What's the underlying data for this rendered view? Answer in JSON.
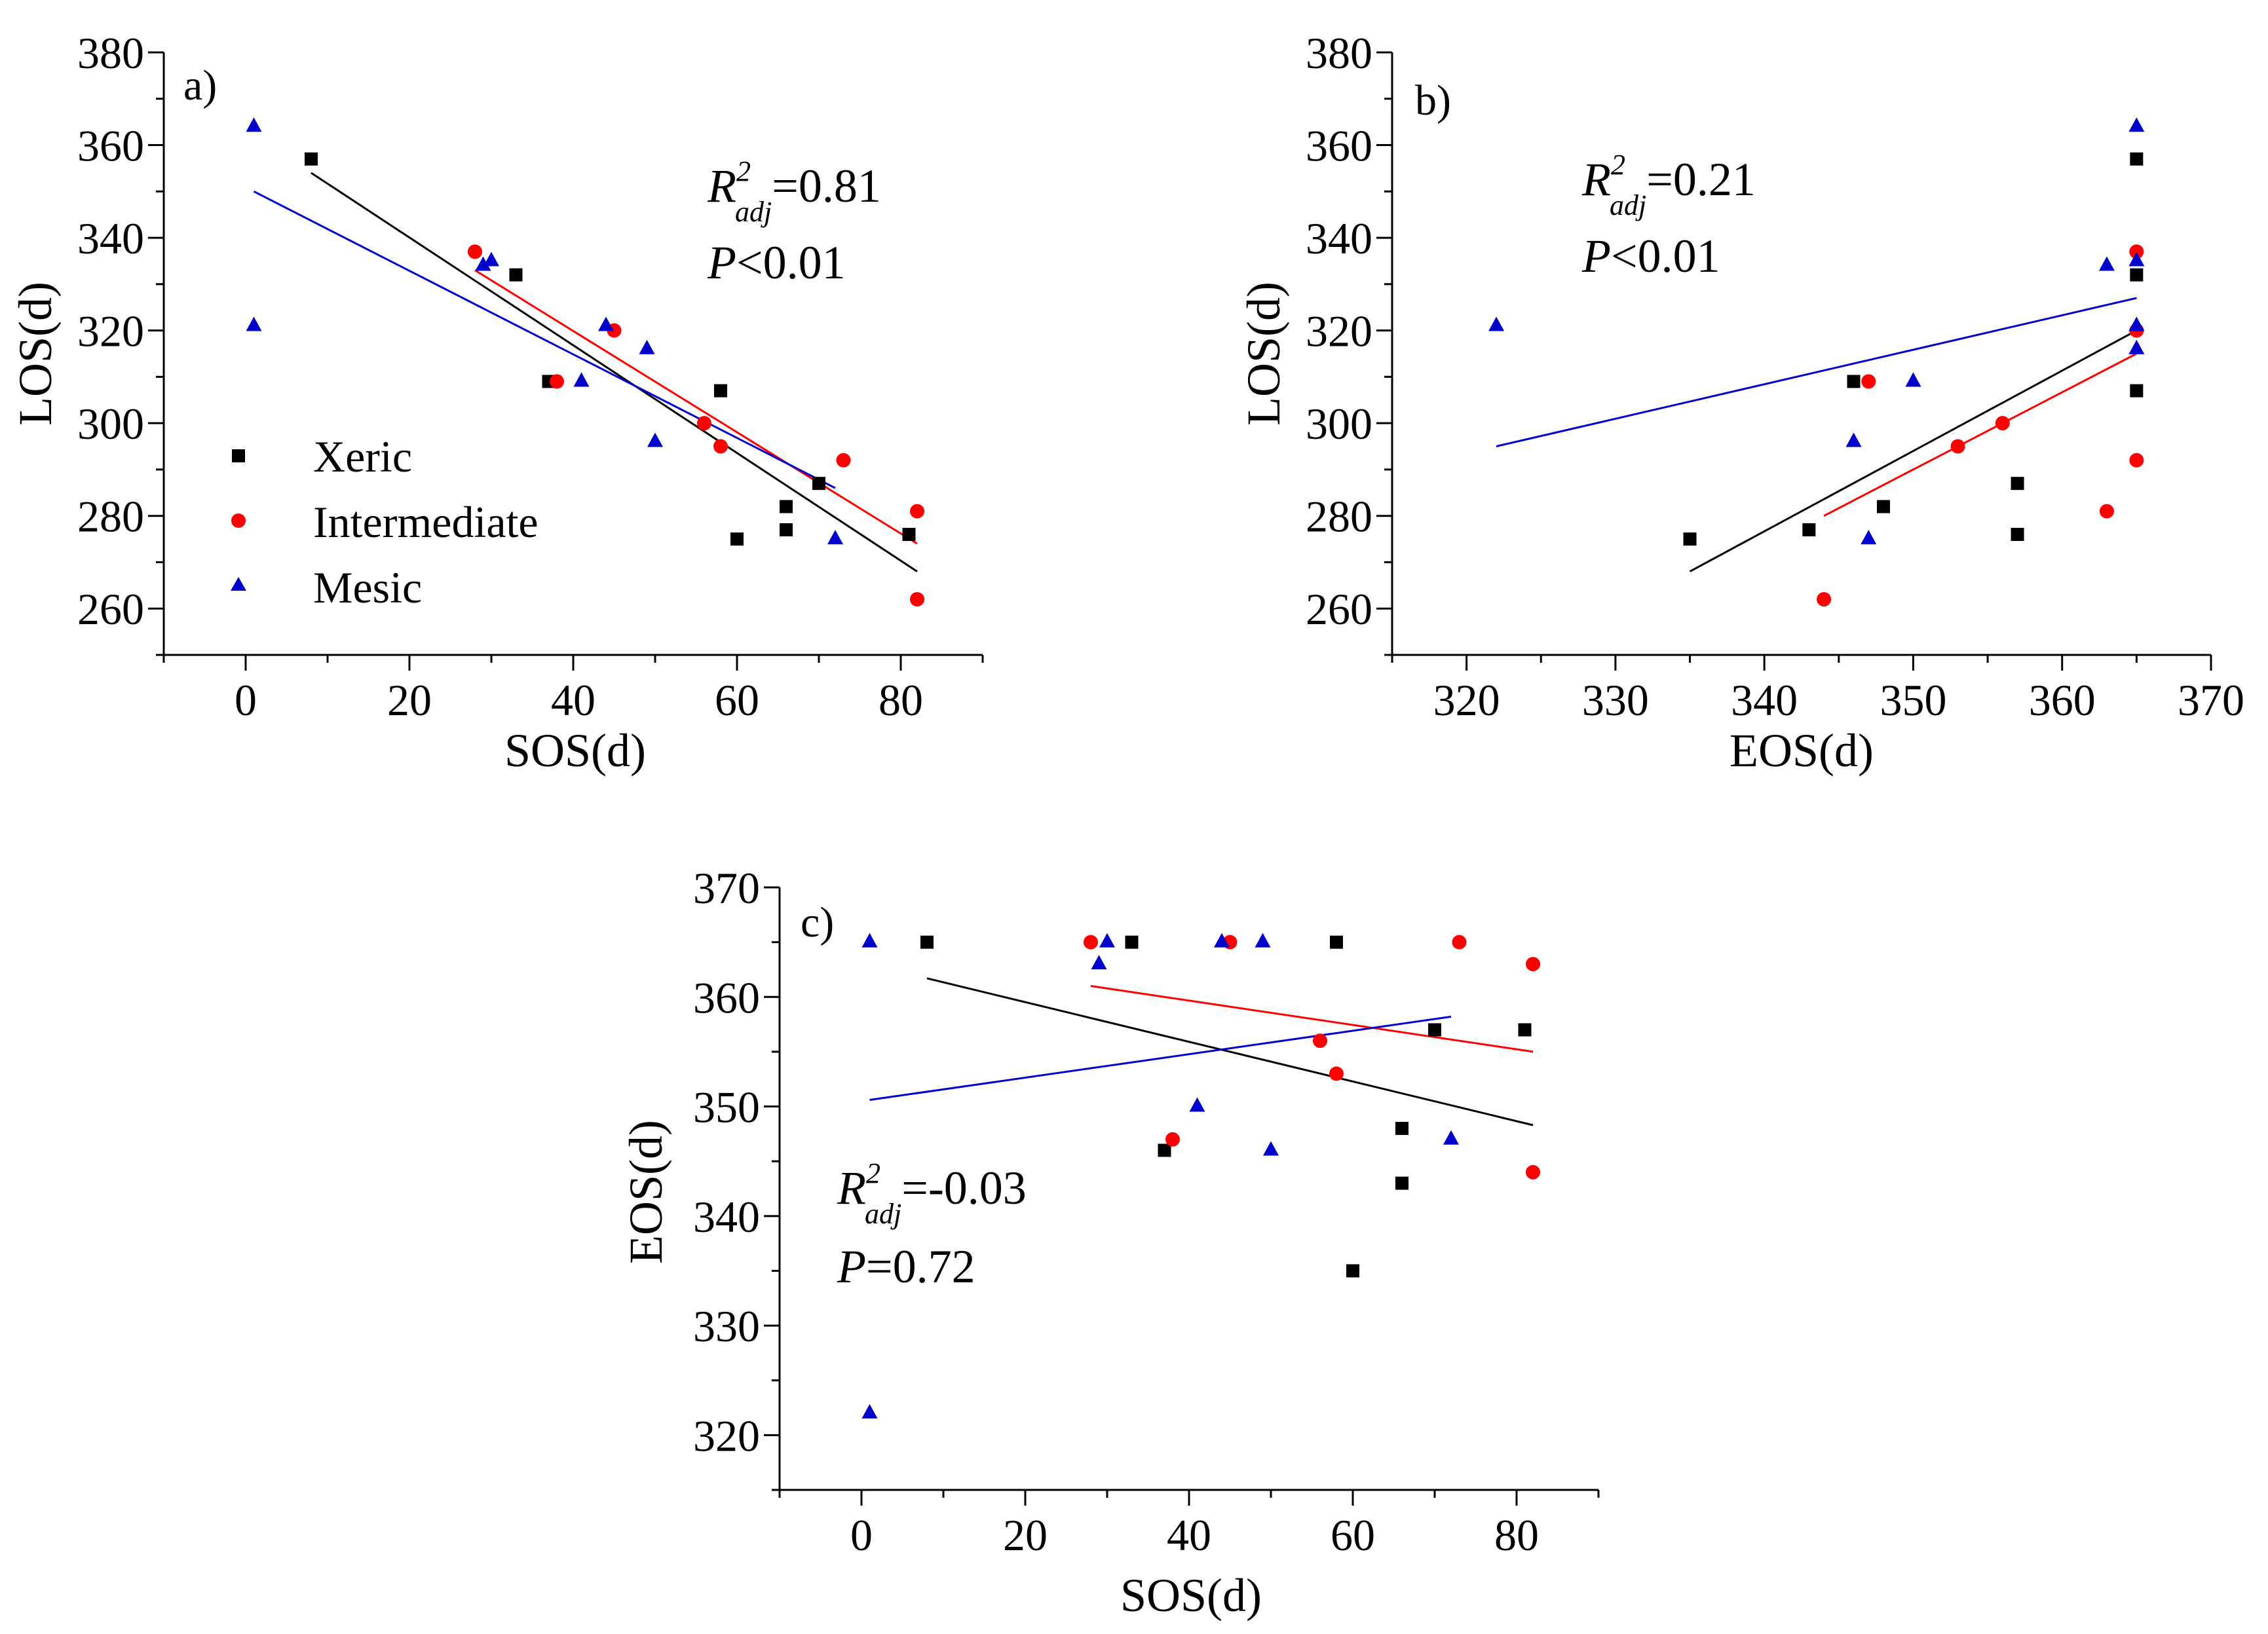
{
  "colors": {
    "Xeric": "#000000",
    "Intermediate": "#ff0000",
    "Mesic": "#0000cc"
  },
  "legend": [
    {
      "name": "Xeric",
      "marker": "square"
    },
    {
      "name": "Intermediate",
      "marker": "circle"
    },
    {
      "name": "Mesic",
      "marker": "triangle"
    }
  ],
  "chart_data": [
    {
      "type": "scatter",
      "panel": "a)",
      "xlabel": "SOS(d)",
      "ylabel": "LOS(d)",
      "xlim": [
        -10,
        90
      ],
      "ylim": [
        250,
        380
      ],
      "xticks": [
        0,
        20,
        40,
        60,
        80
      ],
      "yticks": [
        260,
        280,
        300,
        320,
        340,
        360,
        380
      ],
      "stats": {
        "r2_label": "R",
        "sup": "2",
        "sub": "adj",
        "r2_value": "=0.81",
        "p_label": "P",
        "p_value": "<0.01"
      },
      "series": [
        {
          "name": "Xeric",
          "points": [
            [
              8,
              357
            ],
            [
              33,
              332
            ],
            [
              37,
              309
            ],
            [
              58,
              307
            ],
            [
              60,
              275
            ],
            [
              66,
              282
            ],
            [
              66,
              277
            ],
            [
              70,
              287
            ],
            [
              81,
              276
            ]
          ],
          "fit": [
            [
              8,
              354
            ],
            [
              82,
              268
            ]
          ]
        },
        {
          "name": "Intermediate",
          "points": [
            [
              28,
              337
            ],
            [
              38,
              309
            ],
            [
              45,
              320
            ],
            [
              56,
              300
            ],
            [
              58,
              295
            ],
            [
              73,
              292
            ],
            [
              82,
              281
            ],
            [
              82,
              262
            ]
          ],
          "fit": [
            [
              28,
              333
            ],
            [
              82,
              274
            ]
          ]
        },
        {
          "name": "Mesic",
          "points": [
            [
              1,
              364
            ],
            [
              1,
              321
            ],
            [
              29,
              334
            ],
            [
              30,
              335
            ],
            [
              41,
              309
            ],
            [
              44,
              321
            ],
            [
              49,
              316
            ],
            [
              50,
              296
            ],
            [
              72,
              275
            ]
          ],
          "fit": [
            [
              1,
              350
            ],
            [
              72,
              286
            ]
          ]
        }
      ]
    },
    {
      "type": "scatter",
      "panel": "b)",
      "xlabel": "EOS(d)",
      "ylabel": "LOS(d)",
      "xlim": [
        315,
        370
      ],
      "ylim": [
        250,
        380
      ],
      "xticks": [
        320,
        330,
        340,
        350,
        360,
        370
      ],
      "yticks": [
        260,
        280,
        300,
        320,
        340,
        360,
        380
      ],
      "stats": {
        "r2_label": "R",
        "sup": "2",
        "sub": "adj",
        "r2_value": "=0.21",
        "p_label": "P",
        "p_value": "<0.01"
      },
      "series": [
        {
          "name": "Xeric",
          "points": [
            [
              335,
              275
            ],
            [
              343,
              277
            ],
            [
              346,
              309
            ],
            [
              348,
              282
            ],
            [
              357,
              287
            ],
            [
              357,
              276
            ],
            [
              365,
              357
            ],
            [
              365,
              332
            ],
            [
              365,
              307
            ]
          ],
          "fit": [
            [
              335,
              268
            ],
            [
              365,
              320
            ]
          ]
        },
        {
          "name": "Intermediate",
          "points": [
            [
              344,
              262
            ],
            [
              347,
              309
            ],
            [
              353,
              295
            ],
            [
              356,
              300
            ],
            [
              363,
              281
            ],
            [
              365,
              337
            ],
            [
              365,
              320
            ],
            [
              365,
              292
            ]
          ],
          "fit": [
            [
              344,
              280
            ],
            [
              365,
              315
            ]
          ]
        },
        {
          "name": "Mesic",
          "points": [
            [
              322,
              321
            ],
            [
              346,
              296
            ],
            [
              347,
              275
            ],
            [
              350,
              309
            ],
            [
              363,
              334
            ],
            [
              365,
              364
            ],
            [
              365,
              335
            ],
            [
              365,
              321
            ],
            [
              365,
              316
            ]
          ],
          "fit": [
            [
              322,
              295
            ],
            [
              365,
              327
            ]
          ]
        }
      ]
    },
    {
      "type": "scatter",
      "panel": "c)",
      "xlabel": "SOS(d)",
      "ylabel": "EOS(d)",
      "xlim": [
        -10,
        90
      ],
      "ylim": [
        315,
        370
      ],
      "xticks": [
        0,
        20,
        40,
        60,
        80
      ],
      "yticks": [
        320,
        330,
        340,
        350,
        360,
        370
      ],
      "stats": {
        "r2_label": "R",
        "sup": "2",
        "sub": "adj",
        "r2_value": "=-0.03",
        "p_label": "P",
        "p_value": "=0.72"
      },
      "series": [
        {
          "name": "Xeric",
          "points": [
            [
              8,
              365
            ],
            [
              33,
              365
            ],
            [
              37,
              346
            ],
            [
              58,
              365
            ],
            [
              60,
              335
            ],
            [
              66,
              348
            ],
            [
              66,
              343
            ],
            [
              70,
              357
            ],
            [
              81,
              357
            ]
          ],
          "fit": [
            [
              8,
              361.7
            ],
            [
              82,
              348.3
            ]
          ]
        },
        {
          "name": "Intermediate",
          "points": [
            [
              28,
              365
            ],
            [
              38,
              347
            ],
            [
              45,
              365
            ],
            [
              56,
              356
            ],
            [
              58,
              353
            ],
            [
              73,
              365
            ],
            [
              82,
              363
            ],
            [
              82,
              344
            ]
          ],
          "fit": [
            [
              28,
              361
            ],
            [
              82,
              355
            ]
          ]
        },
        {
          "name": "Mesic",
          "points": [
            [
              1,
              365
            ],
            [
              1,
              322
            ],
            [
              29,
              363
            ],
            [
              30,
              365
            ],
            [
              41,
              350
            ],
            [
              44,
              365
            ],
            [
              49,
              365
            ],
            [
              50,
              346
            ],
            [
              72,
              347
            ]
          ],
          "fit": [
            [
              1,
              350.6
            ],
            [
              72,
              358.2
            ]
          ]
        }
      ]
    }
  ]
}
